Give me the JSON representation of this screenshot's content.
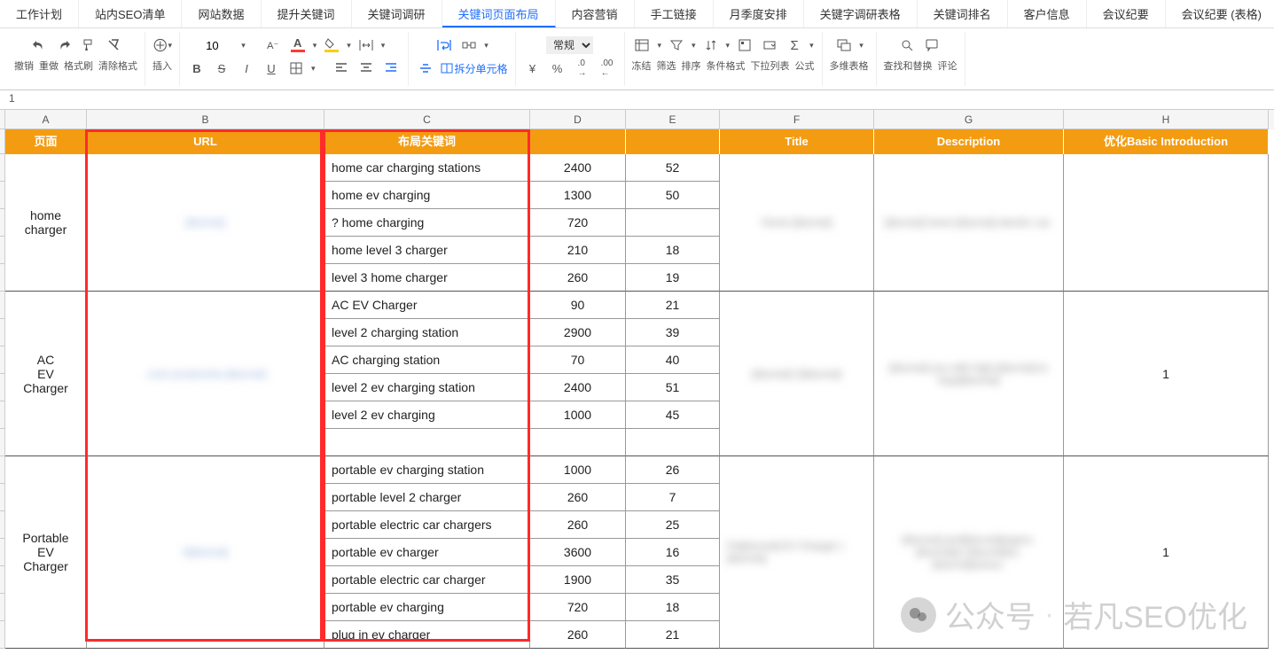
{
  "tabs": [
    "工作计划",
    "站内SEO清单",
    "网站数据",
    "提升关键词",
    "关键词调研",
    "关键词页面布局",
    "内容营销",
    "手工链接",
    "月季度安排",
    "关键字调研表格",
    "关键词排名",
    "客户信息",
    "会议纪要",
    "会议纪要 (表格)"
  ],
  "active_tab_index": 5,
  "toolbar": {
    "undo": "撤销",
    "redo": "重做",
    "paint": "格式刷",
    "clearfmt": "清除格式",
    "insert": "插入",
    "fontsize": "10",
    "freeze": "冻结",
    "filter": "筛选",
    "sort": "排序",
    "condfmt": "条件格式",
    "dropdown": "下拉列表",
    "formula": "公式",
    "multitable": "多维表格",
    "findreplace": "查找和替换",
    "comment": "评论",
    "numfmt": "常规",
    "split": "拆分单元格",
    "currency": "¥",
    "percent": "%",
    "dec_inc_icon": ".0",
    "dec_dec_icon": ".00"
  },
  "cellref": "1",
  "colheaders": [
    "A",
    "B",
    "C",
    "D",
    "E",
    "F",
    "G",
    "H"
  ],
  "header_row": {
    "A": "页面",
    "B": "URL",
    "C": "布局关键词",
    "D": "",
    "E": "",
    "F": "Title",
    "G": "Description",
    "H": "优化Basic Introduction"
  },
  "groups": [
    {
      "page": "home charger",
      "url": "[blurred]",
      "title": "Home [blurred]",
      "desc": "[blurred] home [blurred] electric car.",
      "h": "",
      "rows": [
        {
          "kw": "home car charging stations",
          "d": "2400",
          "e": "52"
        },
        {
          "kw": "home ev charging",
          "d": "1300",
          "e": "50"
        },
        {
          "kw": "? home charging",
          "d": "720",
          "e": ""
        },
        {
          "kw": "home level 3 charger",
          "d": "210",
          "e": "18"
        },
        {
          "kw": "level 3 home charger",
          "d": "260",
          "e": "19"
        }
      ]
    },
    {
      "page": "AC EV Charger",
      "url": ".com/ product/ac-[blurred]",
      "title": "[blurred] C[blurred]",
      "desc": "[blurred] you with high-[blurred] to inqui[blurred]",
      "h": "1",
      "rows": [
        {
          "kw": "AC EV Charger",
          "d": "90",
          "e": "21"
        },
        {
          "kw": "level 2 charging station",
          "d": "2900",
          "e": "39"
        },
        {
          "kw": "AC charging station",
          "d": "70",
          "e": "40"
        },
        {
          "kw": "level 2 ev charging station",
          "d": "2400",
          "e": "51"
        },
        {
          "kw": "level 2 ev charging",
          "d": "1000",
          "e": "45"
        },
        {
          "kw": "",
          "d": "",
          "e": ""
        }
      ]
    },
    {
      "page": "Portable EV Charger",
      "url": "h[blurred]",
      "title": "Po[blurred] EV Charger | [blurred]",
      "desc": "[blurred] port[blurred]argers, [blurred]ur [blurred]on, [blurred]siness.",
      "h": "1",
      "rows": [
        {
          "kw": "portable ev charging station",
          "d": "1000",
          "e": "26"
        },
        {
          "kw": "portable level 2 charger",
          "d": "260",
          "e": "7"
        },
        {
          "kw": "portable electric car chargers",
          "d": "260",
          "e": "25"
        },
        {
          "kw": "portable ev charger",
          "d": "3600",
          "e": "16"
        },
        {
          "kw": "portable electric car charger",
          "d": "1900",
          "e": "35"
        },
        {
          "kw": "portable ev charging",
          "d": "720",
          "e": "18"
        },
        {
          "kw": "plug in ev charger",
          "d": "260",
          "e": "21"
        }
      ]
    }
  ],
  "watermark": {
    "label": "公众号",
    "name": "若凡SEO优化"
  },
  "colors": {
    "header_bg": "#f39c12",
    "accent": "#1e6fff",
    "redbox": "#ff2a2a"
  }
}
